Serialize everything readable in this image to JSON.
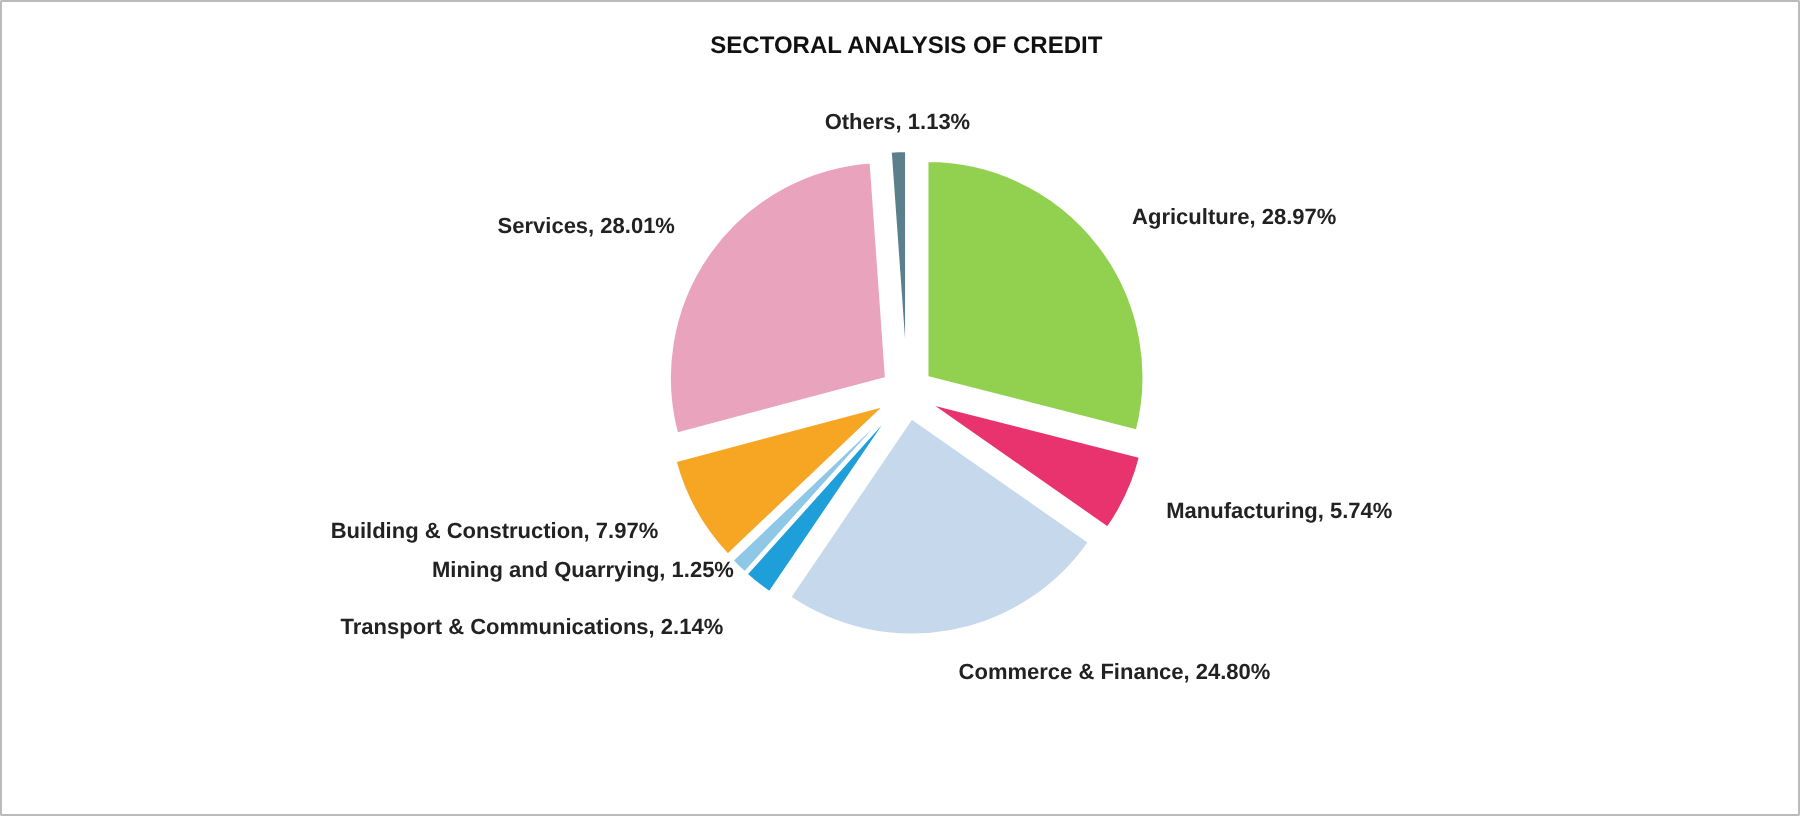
{
  "chart_data": {
    "type": "pie",
    "title": "SECTORAL ANALYSIS OF CREDIT",
    "categories": [
      "Agriculture",
      "Manufacturing",
      "Commerce & Finance",
      "Transport & Communications",
      "Mining and Quarrying",
      "Building & Construction",
      "Services",
      "Others"
    ],
    "values": [
      28.97,
      5.74,
      24.8,
      2.14,
      1.25,
      7.97,
      28.01,
      1.13
    ],
    "value_labels": [
      "28.97%",
      "5.74%",
      "24.80%",
      "2.14%",
      "1.25%",
      "7.97%",
      "28.01%",
      "1.13%"
    ],
    "colors": [
      "#92d050",
      "#e8336f",
      "#c6d9ec",
      "#1f9fd9",
      "#8fc8e6",
      "#f6a623",
      "#e9a3bd",
      "#5b7f8c"
    ],
    "legend": false
  }
}
